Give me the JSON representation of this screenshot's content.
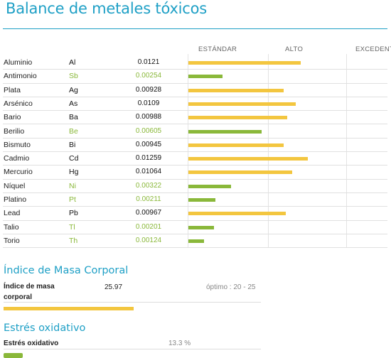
{
  "page": {
    "title": "Balance de metales tóxicos"
  },
  "columns": [
    "ESTÁNDAR",
    "ALTO",
    "EXCEDENT"
  ],
  "colors": {
    "standard": "#8ab83a",
    "high": "#f3c63f",
    "accent": "#1fa0c6"
  },
  "metals": [
    {
      "name": "Aluminio",
      "symbol": "Al",
      "value": "0.0121",
      "status": "high",
      "level": 0.66
    },
    {
      "name": "Antimonio",
      "symbol": "Sb",
      "value": "0.00254",
      "status": "standard",
      "level": 0.2
    },
    {
      "name": "Plata",
      "symbol": "Ag",
      "value": "0.00928",
      "status": "high",
      "level": 0.56
    },
    {
      "name": "Arsénico",
      "symbol": "As",
      "value": "0.0109",
      "status": "high",
      "level": 0.63
    },
    {
      "name": "Bario",
      "symbol": "Ba",
      "value": "0.00988",
      "status": "high",
      "level": 0.58
    },
    {
      "name": "Berilio",
      "symbol": "Be",
      "value": "0.00605",
      "status": "standard",
      "level": 0.43
    },
    {
      "name": "Bismuto",
      "symbol": "Bi",
      "value": "0.00945",
      "status": "high",
      "level": 0.56
    },
    {
      "name": "Cadmio",
      "symbol": "Cd",
      "value": "0.01259",
      "status": "high",
      "level": 0.7
    },
    {
      "name": "Mercurio",
      "symbol": "Hg",
      "value": "0.01064",
      "status": "high",
      "level": 0.61
    },
    {
      "name": "Níquel",
      "symbol": "Ni",
      "value": "0.00322",
      "status": "standard",
      "level": 0.25
    },
    {
      "name": "Platino",
      "symbol": "Pt",
      "value": "0.00211",
      "status": "standard",
      "level": 0.16
    },
    {
      "name": "Lead",
      "symbol": "Pb",
      "value": "0.00967",
      "status": "high",
      "level": 0.57
    },
    {
      "name": "Talio",
      "symbol": "Tl",
      "value": "0.00201",
      "status": "standard",
      "level": 0.15
    },
    {
      "name": "Torio",
      "symbol": "Th",
      "value": "0.00124",
      "status": "standard",
      "level": 0.09
    }
  ],
  "bmi": {
    "section_title": "Índice de Masa Corporal",
    "label": "Índice de masa corporal",
    "value": "25.97",
    "range": "óptimo : 20 - 25",
    "level": 0.5
  },
  "oxidative": {
    "section_title": "Estrés oxidativo",
    "label": "Estrés oxidativo",
    "value": "13.3 %",
    "level": 0.133
  }
}
